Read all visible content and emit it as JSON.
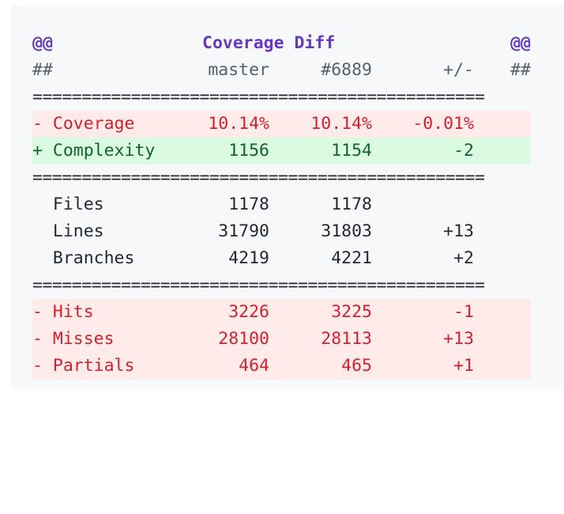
{
  "header": {
    "left_marker": "@@",
    "title": "Coverage Diff",
    "right_marker": "@@"
  },
  "column_header": {
    "left_marker": "##",
    "base": "master",
    "head": "#6889",
    "diff": "+/-",
    "right_marker": "##"
  },
  "separator": "==============================================",
  "rows": [
    {
      "prefix": "- ",
      "label": "Coverage",
      "base": "10.14%",
      "head": "10.14%",
      "diff": "-0.01%",
      "status": "minus"
    },
    {
      "prefix": "+ ",
      "label": "Complexity",
      "base": "1156",
      "head": "1154",
      "diff": "-2",
      "status": "plus"
    },
    {
      "prefix": "  ",
      "label": "Files",
      "base": "1178",
      "head": "1178",
      "diff": "",
      "status": "neutral"
    },
    {
      "prefix": "  ",
      "label": "Lines",
      "base": "31790",
      "head": "31803",
      "diff": "+13",
      "status": "neutral"
    },
    {
      "prefix": "  ",
      "label": "Branches",
      "base": "4219",
      "head": "4221",
      "diff": "+2",
      "status": "neutral"
    },
    {
      "prefix": "- ",
      "label": "Hits",
      "base": "3226",
      "head": "3225",
      "diff": "-1",
      "status": "minus"
    },
    {
      "prefix": "- ",
      "label": "Misses",
      "base": "28100",
      "head": "28113",
      "diff": "+13",
      "status": "minus"
    },
    {
      "prefix": "- ",
      "label": "Partials",
      "base": "464",
      "head": "465",
      "diff": "+1",
      "status": "minus"
    }
  ],
  "colors": {
    "minus_text": "#cf222e",
    "minus_bg": "#ffebe9",
    "plus_text": "#116329",
    "plus_bg": "#dafbe1",
    "header_text": "#6639ba",
    "panel_bg": "#f6f8fa"
  }
}
